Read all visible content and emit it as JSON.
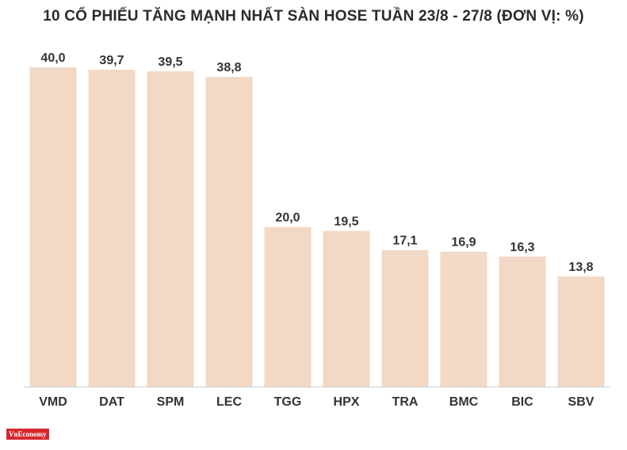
{
  "chart_data": {
    "type": "bar",
    "title": "10 CỔ PHIẾU TĂNG MẠNH NHẤT SÀN HOSE TUẦN 23/8 - 27/8 (ĐƠN VỊ: %)",
    "categories": [
      "VMD",
      "DAT",
      "SPM",
      "LEC",
      "TGG",
      "HPX",
      "TRA",
      "BMC",
      "BIC",
      "SBV"
    ],
    "values": [
      40.0,
      39.7,
      39.5,
      38.8,
      20.0,
      19.5,
      17.1,
      16.9,
      16.3,
      13.8
    ],
    "value_labels": [
      "40,0",
      "39,7",
      "39,5",
      "38,8",
      "20,0",
      "19,5",
      "17,1",
      "16,9",
      "16,3",
      "13,8"
    ],
    "xlabel": "",
    "ylabel": "",
    "ylim": [
      0,
      40
    ],
    "grid": false,
    "legend": "none",
    "bar_color": "#f2d9c6",
    "baseline_color": "#cfcfcf",
    "label_color": "#333333"
  },
  "brand": {
    "logo_text": "VnEconomy",
    "logo_color": "#d7282f"
  }
}
